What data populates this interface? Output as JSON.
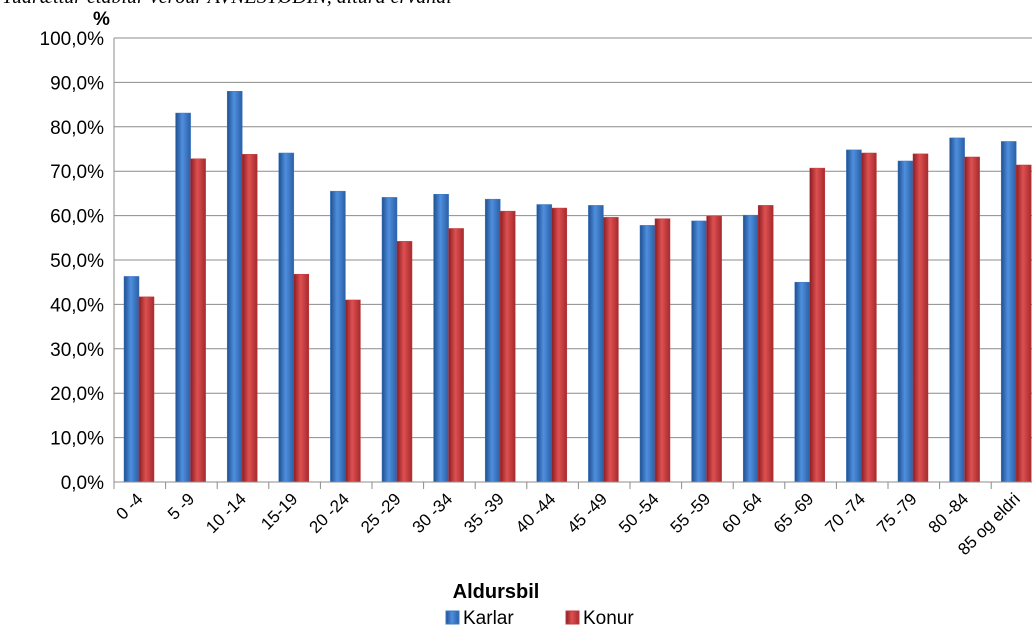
{
  "header_fragment": "Tudrættur etablur verður AVNESTØÐIN, altura ervandi",
  "chart_data": {
    "type": "bar",
    "ylabel": "%",
    "xlabel": "Aldursbil",
    "ylim": [
      0,
      100
    ],
    "yticks": [
      "0,0%",
      "10,0%",
      "20,0%",
      "30,0%",
      "40,0%",
      "50,0%",
      "60,0%",
      "70,0%",
      "80,0%",
      "90,0%",
      "100,0%"
    ],
    "grid": true,
    "legend_position": "bottom",
    "categories": [
      "0 -4",
      "5 -9",
      "10 -14",
      "15-19",
      "20 -24",
      "25 -29",
      "30 -34",
      "35 -39",
      "40 -44",
      "45 -49",
      "50 -54",
      "55 -59",
      "60 -64",
      "65 -69",
      "70 -74",
      "75 -79",
      "80 -84",
      "85 og eldri"
    ],
    "series": [
      {
        "name": "Karlar",
        "color": "#3b78c4",
        "values": [
          46.3,
          83.1,
          88.0,
          74.1,
          65.5,
          64.1,
          64.8,
          63.7,
          62.5,
          62.3,
          57.8,
          58.8,
          60.1,
          45.0,
          74.8,
          72.3,
          77.5,
          76.7
        ]
      },
      {
        "name": "Konur",
        "color": "#c0393b",
        "values": [
          41.7,
          72.8,
          73.8,
          46.8,
          41.0,
          54.2,
          57.1,
          61.0,
          61.7,
          59.6,
          59.3,
          59.9,
          62.3,
          70.7,
          74.1,
          73.9,
          73.2,
          71.4
        ]
      }
    ]
  }
}
